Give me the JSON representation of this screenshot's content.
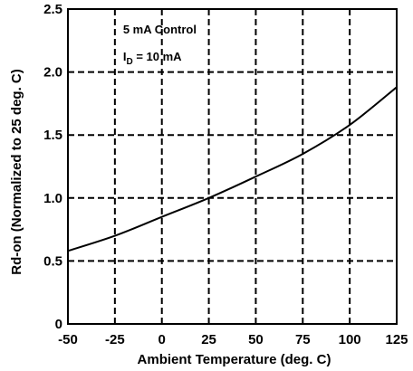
{
  "chart_data": {
    "type": "line",
    "xlabel": "Ambient Temperature (deg. C)",
    "ylabel": "Rd-on (Normalized to 25 deg. C)",
    "xlim": [
      -50,
      125
    ],
    "ylim": [
      0,
      2.5
    ],
    "x_ticks": [
      -50,
      -25,
      0,
      25,
      50,
      75,
      100,
      125
    ],
    "x_tick_labels": [
      "-50",
      "-25",
      "0",
      "25",
      "50",
      "75",
      "100",
      "125"
    ],
    "y_ticks": [
      0,
      0.5,
      1.0,
      1.5,
      2.0,
      2.5
    ],
    "y_tick_labels": [
      "0",
      "0.5",
      "1.0",
      "1.5",
      "2.0",
      "2.5"
    ],
    "grid": true,
    "annotation": {
      "line1": "5 mA Control",
      "line2_main": "I",
      "line2_sub": "D",
      "line2_rest": " = 10 mA"
    },
    "series": [
      {
        "x": [
          -50,
          -25,
          0,
          25,
          50,
          75,
          100,
          125
        ],
        "values": [
          0.58,
          0.7,
          0.85,
          1.0,
          1.17,
          1.35,
          1.58,
          1.88
        ]
      }
    ]
  }
}
